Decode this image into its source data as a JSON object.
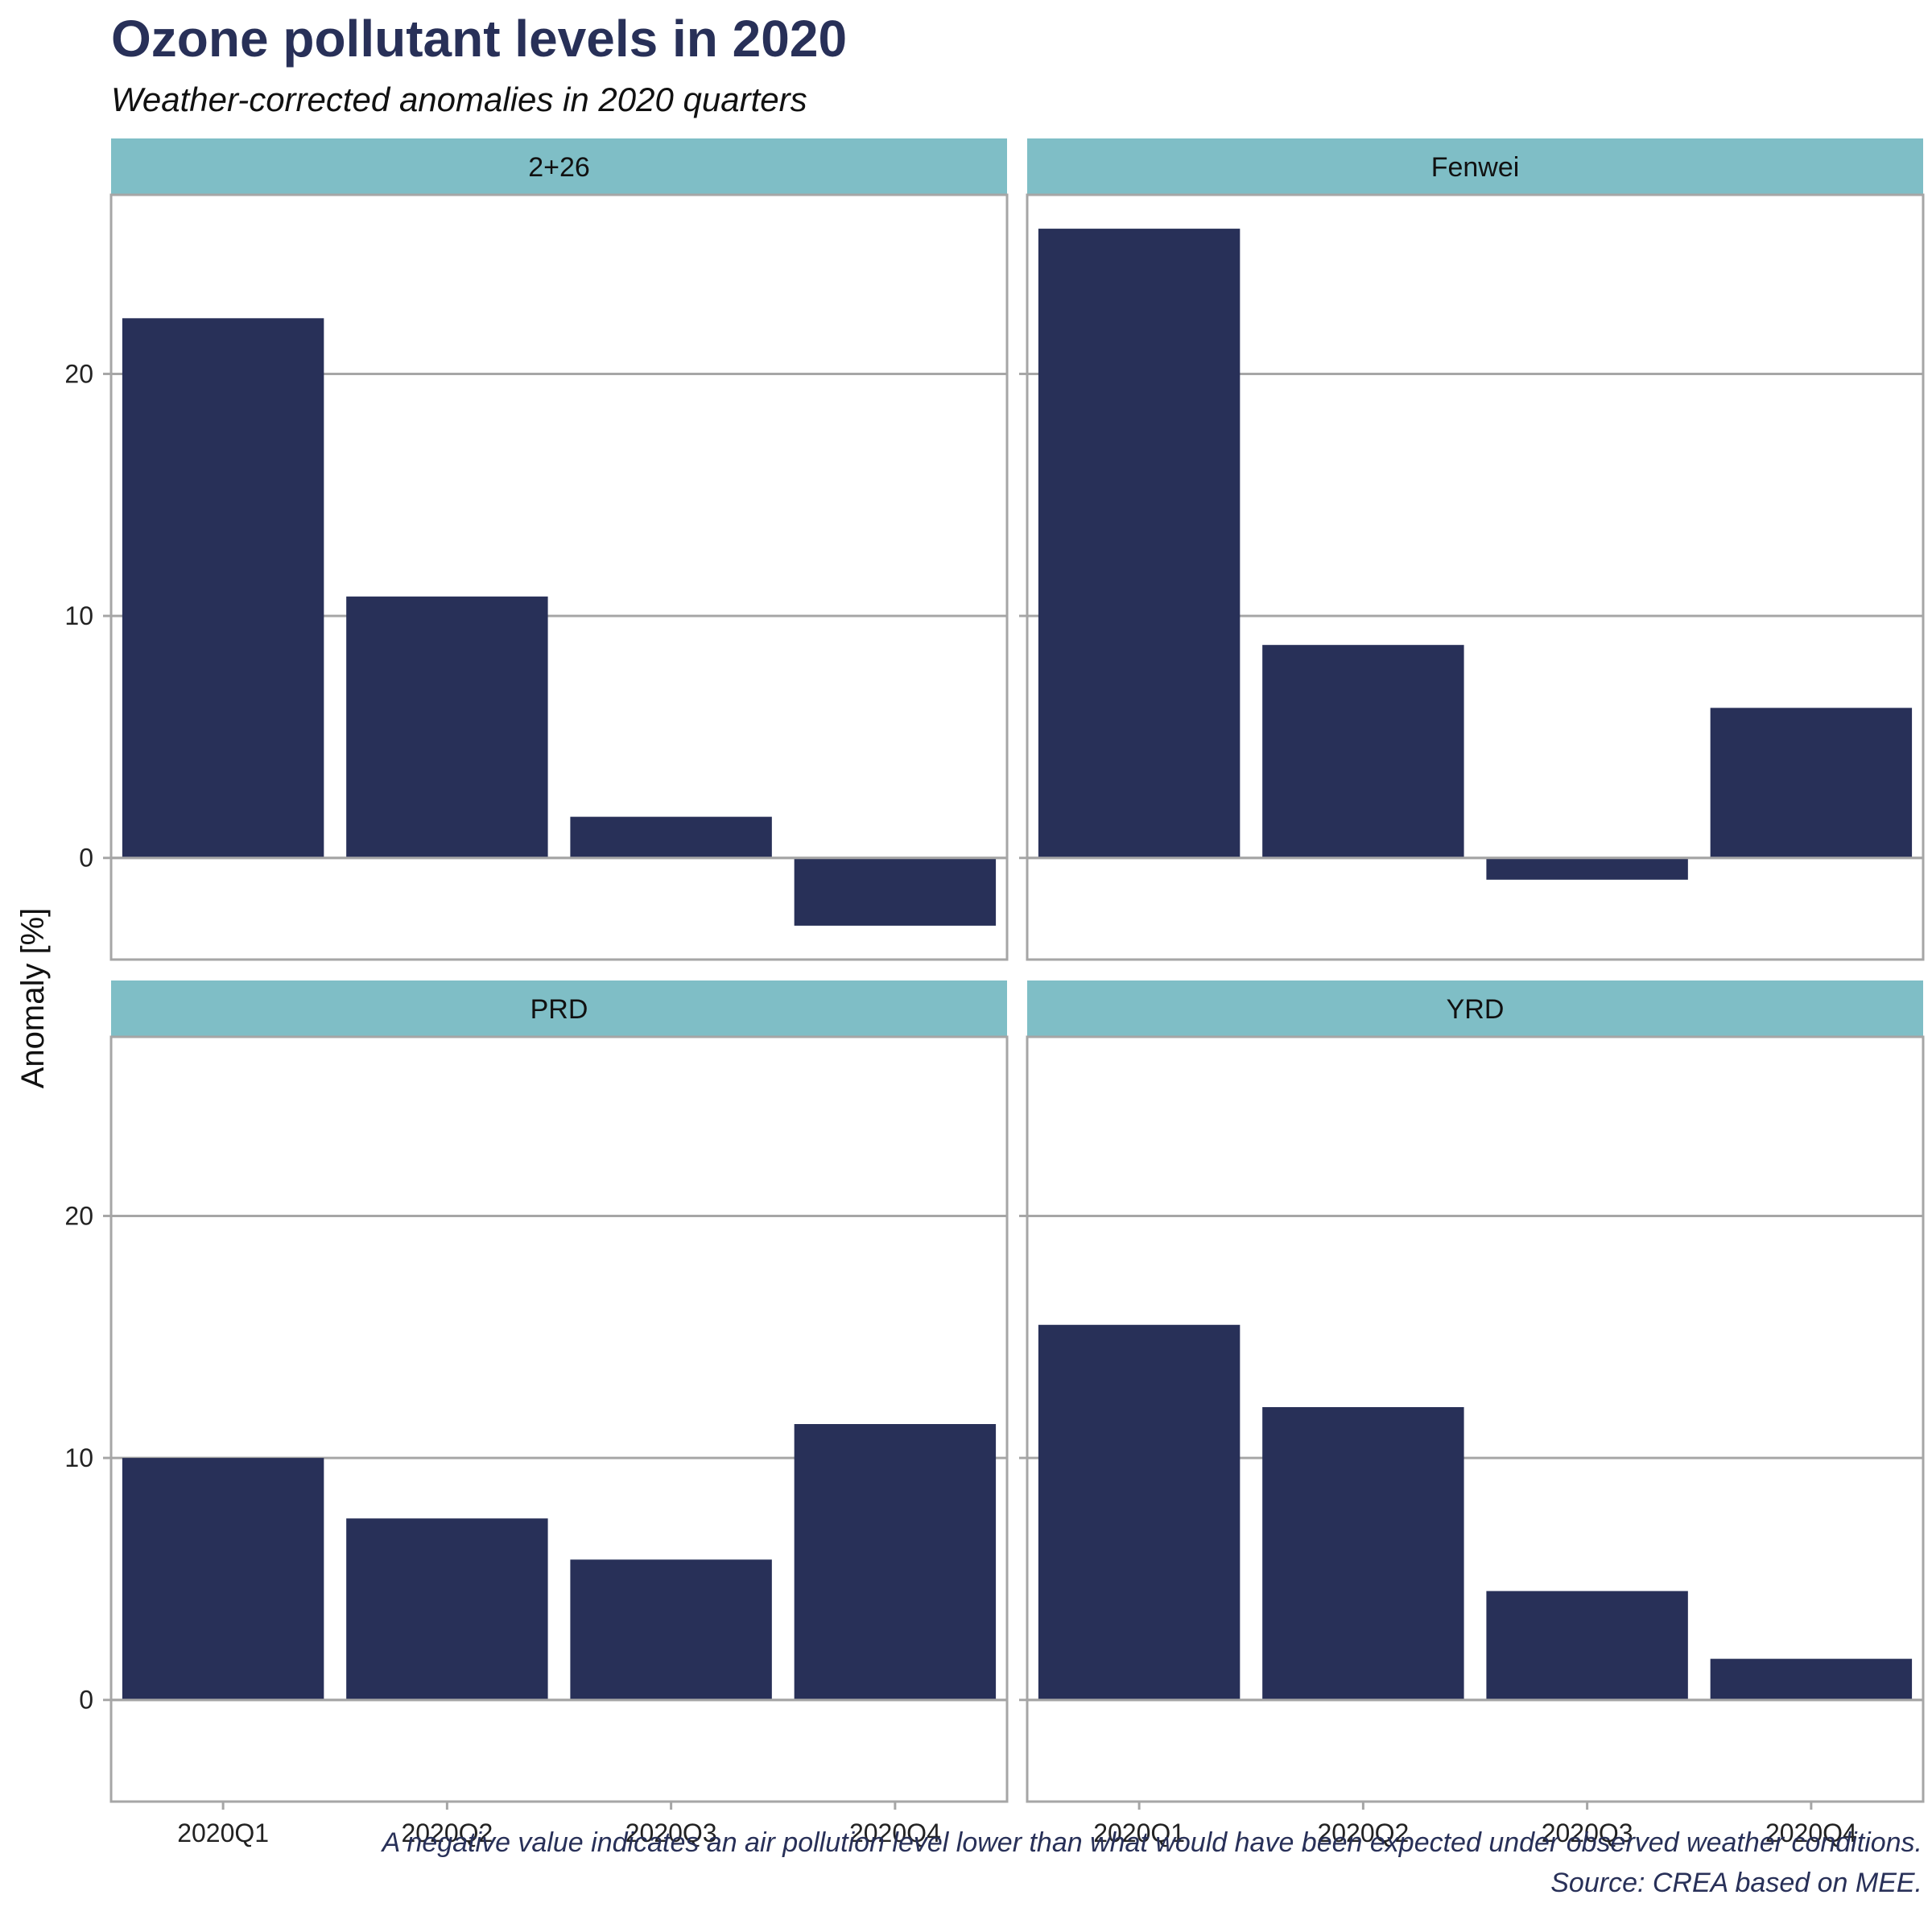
{
  "chart_data": {
    "type": "bar",
    "title": "Ozone pollutant levels in 2020",
    "subtitle": "Weather-corrected anomalies in 2020 quarters",
    "ylabel": "Anomaly [%]",
    "xlabel": "",
    "ylim": [
      -4.2,
      27.4
    ],
    "yticks": [
      0,
      10,
      20
    ],
    "grid": true,
    "bar_color": "#283058",
    "strip_color": "#7fbec6",
    "categories": [
      "2020Q1",
      "2020Q2",
      "2020Q3",
      "2020Q4"
    ],
    "panels": [
      {
        "name": "2+26",
        "values": [
          22.3,
          10.8,
          1.7,
          -2.8
        ]
      },
      {
        "name": "Fenwei",
        "values": [
          26.0,
          8.8,
          -0.9,
          6.2
        ]
      },
      {
        "name": "PRD",
        "values": [
          10.0,
          7.5,
          5.8,
          11.4
        ]
      },
      {
        "name": "YRD",
        "values": [
          15.5,
          12.1,
          4.5,
          1.7
        ]
      }
    ],
    "caption_lines": [
      "A negative value indicates an air pollution level lower than what would have been expected under observed weather conditions.",
      "Source: CREA based on MEE."
    ]
  }
}
